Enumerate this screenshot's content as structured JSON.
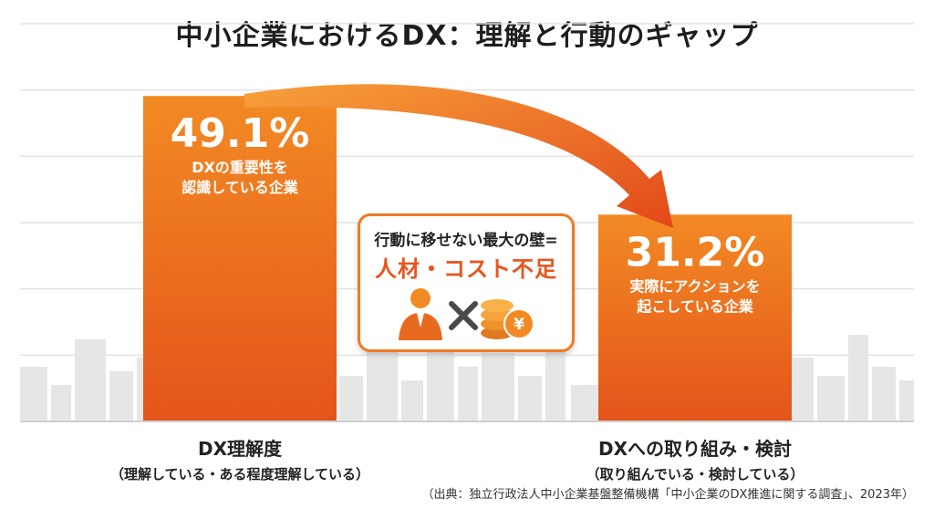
{
  "chart_data": {
    "type": "bar",
    "title": "中小企業におけるDX：理解と行動のギャップ",
    "categories": [
      "DX理解度",
      "DXへの取り組み・検討"
    ],
    "category_sublabels": [
      "（理解している・ある程度理解している）",
      "（取り組んでいる・検討している）"
    ],
    "values": [
      49.1,
      31.2
    ],
    "value_labels": [
      "49.1%",
      "31.2%"
    ],
    "bar_descriptions": [
      "DXの重要性を\n認識している企業",
      "実際にアクションを\n起こしている企業"
    ],
    "ylim": [
      0,
      60
    ],
    "grid": true,
    "colors": {
      "bar_top": "#f28a24",
      "bar_bottom": "#e4541a",
      "arrow": "#e8531a",
      "accent": "#ef7a22"
    }
  },
  "callout": {
    "line1": "行動に移せない最大の壁=",
    "line2": "人材・コスト不足",
    "coin_symbol": "¥",
    "icons": [
      "businessman-icon",
      "cross-icon",
      "yen-coins-icon"
    ]
  },
  "source": "（出典：独立行政法人中小企業基盤整備機構「中小企業のDX推進に関する調査」、2023年）"
}
